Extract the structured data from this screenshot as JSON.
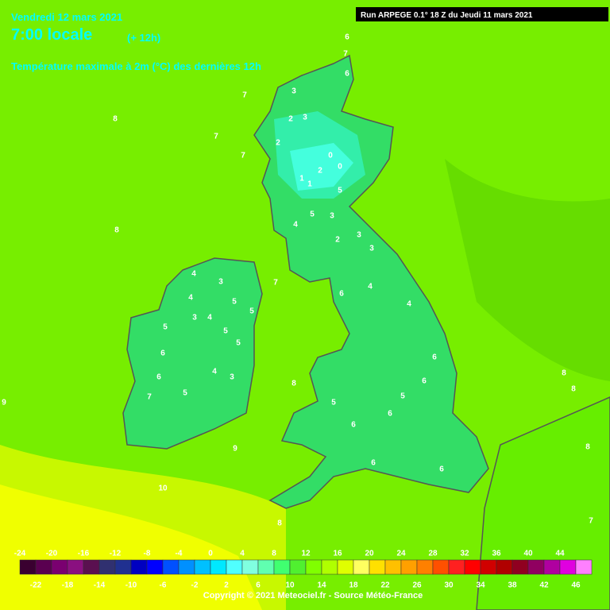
{
  "header": {
    "date": "Vendredi 12 mars 2021",
    "time": "7:00 locale",
    "lead": "(+ 12h)",
    "title": "Température maximale à 2m (°C) des dernières 12h",
    "run": "Run ARPEGE 0.1° 18 Z du Jeudi 11 mars 2021"
  },
  "map_labels": [
    "8",
    "7",
    "7",
    "7",
    "6",
    "6",
    "7",
    "3",
    "3",
    "2",
    "2",
    "0",
    "0",
    "1",
    "1",
    "2",
    "5",
    "5",
    "4",
    "3",
    "2",
    "3",
    "3",
    "4",
    "4",
    "5",
    "3",
    "6",
    "7",
    "4",
    "4",
    "3",
    "4",
    "5",
    "5",
    "5",
    "6",
    "6",
    "7",
    "5",
    "4",
    "5",
    "3",
    "5",
    "6",
    "5",
    "6",
    "6",
    "6",
    "8",
    "9",
    "10",
    "8",
    "6",
    "6",
    "8",
    "8",
    "8",
    "8",
    "7",
    "9"
  ],
  "colorbar": {
    "top_labels": [
      -24,
      -20,
      -16,
      -12,
      -8,
      -4,
      0,
      4,
      8,
      12,
      16,
      20,
      24,
      28,
      32,
      36,
      40,
      44
    ],
    "bottom_labels": [
      -22,
      -18,
      -14,
      -10,
      -6,
      -2,
      2,
      6,
      10,
      14,
      18,
      22,
      26,
      30,
      34,
      38,
      42,
      46
    ],
    "colors": [
      "#3a0030",
      "#5a0050",
      "#7a0070",
      "#8a1080",
      "#5a1050",
      "#303070",
      "#203090",
      "#0000c0",
      "#0000ff",
      "#0050ff",
      "#0090ff",
      "#00c0ff",
      "#00e8ff",
      "#50ffff",
      "#80ffe0",
      "#60ffb0",
      "#40ff70",
      "#50f030",
      "#80ff00",
      "#b0ff00",
      "#e0ff00",
      "#ffff60",
      "#ffe000",
      "#ffc000",
      "#ffa000",
      "#ff8000",
      "#ff5000",
      "#ff2020",
      "#ff0000",
      "#d00000",
      "#b00000",
      "#900020",
      "#900060",
      "#b000a0",
      "#e000e0",
      "#ff80ff"
    ]
  },
  "footer": {
    "copyright": "Copyright © 2021 Meteociel.fr - Source Météo-France"
  }
}
